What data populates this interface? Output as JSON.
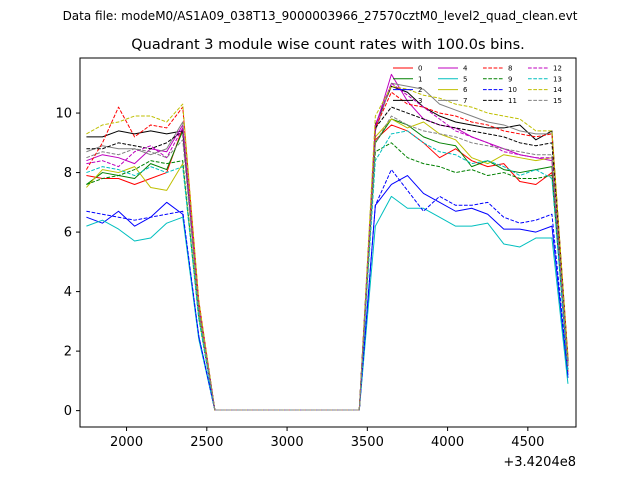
{
  "chart_data": {
    "type": "line",
    "suptitle": "Data file: modeM0/AS1A09_038T13_9000003966_27570cztM0_level2_quad_clean.evt",
    "title": "Quadrant 3 module wise count rates with 100.0s bins.",
    "xlabel": "",
    "ylabel": "",
    "offset_text": "+3.4204e8",
    "xlim": [
      1710,
      4800
    ],
    "ylim": [
      -0.55,
      11.85
    ],
    "xticks": [
      2000,
      2500,
      3000,
      3500,
      4000,
      4500
    ],
    "yticks": [
      0,
      2,
      4,
      6,
      8,
      10
    ],
    "grid": false,
    "legend_position": "top-right",
    "legend_columns": 4,
    "x": [
      1750,
      1850,
      1950,
      2050,
      2150,
      2250,
      2350,
      2450,
      2550,
      2650,
      2750,
      2850,
      2950,
      3050,
      3150,
      3250,
      3350,
      3450,
      3550,
      3650,
      3750,
      3850,
      3950,
      4050,
      4150,
      4250,
      4350,
      4450,
      4550,
      4650,
      4750
    ],
    "series": [
      {
        "name": "0",
        "color": "#ff0000",
        "dash": "solid",
        "values": [
          7.9,
          7.8,
          7.8,
          7.6,
          7.8,
          8.0,
          9.5,
          3.5,
          0.02,
          0.02,
          0.02,
          0.02,
          0.02,
          0.02,
          0.02,
          0.02,
          0.02,
          0.02,
          9.1,
          9.6,
          9.4,
          9.0,
          8.5,
          8.8,
          8.4,
          8.2,
          8.3,
          7.7,
          7.6,
          8.0,
          1.3
        ]
      },
      {
        "name": "1",
        "color": "#008000",
        "dash": "solid",
        "values": [
          7.6,
          8.0,
          7.9,
          7.8,
          8.3,
          8.1,
          9.4,
          3.4,
          0.02,
          0.02,
          0.02,
          0.02,
          0.02,
          0.02,
          0.02,
          0.02,
          0.02,
          0.02,
          9.0,
          9.8,
          9.6,
          9.2,
          9.0,
          8.9,
          8.2,
          8.4,
          8.1,
          8.0,
          8.1,
          8.2,
          1.6
        ]
      },
      {
        "name": "2",
        "color": "#0000ff",
        "dash": "solid",
        "values": [
          6.5,
          6.3,
          6.7,
          6.2,
          6.5,
          7.0,
          6.6,
          2.5,
          0.02,
          0.02,
          0.02,
          0.02,
          0.02,
          0.02,
          0.02,
          0.02,
          0.02,
          0.02,
          6.9,
          7.6,
          7.9,
          7.3,
          7.0,
          6.7,
          6.8,
          6.6,
          6.1,
          6.1,
          6.0,
          6.2,
          1.1
        ]
      },
      {
        "name": "3",
        "color": "#000000",
        "dash": "solid",
        "values": [
          9.2,
          9.2,
          9.4,
          9.3,
          9.4,
          9.3,
          9.4,
          3.6,
          0.02,
          0.02,
          0.02,
          0.02,
          0.02,
          0.02,
          0.02,
          0.02,
          0.02,
          0.02,
          9.6,
          10.9,
          10.7,
          10.2,
          9.9,
          9.7,
          9.6,
          9.5,
          9.5,
          9.6,
          9.1,
          9.4,
          1.7
        ]
      },
      {
        "name": "4",
        "color": "#bf00bf",
        "dash": "solid",
        "values": [
          8.4,
          8.6,
          8.5,
          8.3,
          8.8,
          8.7,
          9.6,
          3.5,
          0.02,
          0.02,
          0.02,
          0.02,
          0.02,
          0.02,
          0.02,
          0.02,
          0.02,
          0.02,
          9.5,
          11.3,
          10.4,
          9.8,
          9.6,
          9.5,
          9.2,
          9.0,
          8.8,
          8.6,
          8.5,
          8.4,
          1.5
        ]
      },
      {
        "name": "5",
        "color": "#00bfbf",
        "dash": "solid",
        "values": [
          6.2,
          6.4,
          6.1,
          5.7,
          5.8,
          6.3,
          6.5,
          2.4,
          0.02,
          0.02,
          0.02,
          0.02,
          0.02,
          0.02,
          0.02,
          0.02,
          0.02,
          0.02,
          6.2,
          7.2,
          6.8,
          6.8,
          6.5,
          6.2,
          6.2,
          6.3,
          5.6,
          5.5,
          5.8,
          5.8,
          0.9
        ]
      },
      {
        "name": "6",
        "color": "#bfbf00",
        "dash": "solid",
        "values": [
          7.5,
          8.1,
          8.0,
          8.2,
          7.5,
          7.4,
          8.3,
          3.2,
          0.02,
          0.02,
          0.02,
          0.02,
          0.02,
          0.02,
          0.02,
          0.02,
          0.02,
          0.02,
          9.2,
          9.8,
          9.5,
          9.7,
          9.3,
          9.1,
          8.5,
          8.3,
          8.6,
          8.5,
          8.4,
          8.5,
          1.6
        ]
      },
      {
        "name": "7",
        "color": "#808080",
        "dash": "solid",
        "values": [
          8.7,
          8.9,
          8.8,
          8.8,
          8.6,
          8.8,
          9.7,
          3.6,
          0.02,
          0.02,
          0.02,
          0.02,
          0.02,
          0.02,
          0.02,
          0.02,
          0.02,
          0.02,
          9.4,
          11.0,
          10.9,
          10.8,
          10.3,
          10.1,
          9.9,
          9.7,
          9.6,
          9.4,
          9.3,
          9.3,
          1.7
        ]
      },
      {
        "name": "8",
        "color": "#ff0000",
        "dash": "dashed",
        "values": [
          8.1,
          9.0,
          10.2,
          9.2,
          9.6,
          9.5,
          10.2,
          3.7,
          0.02,
          0.02,
          0.02,
          0.02,
          0.02,
          0.02,
          0.02,
          0.02,
          0.02,
          0.02,
          9.5,
          10.7,
          10.3,
          10.2,
          10.0,
          9.9,
          9.7,
          9.6,
          9.4,
          9.3,
          9.2,
          9.3,
          1.8
        ]
      },
      {
        "name": "9",
        "color": "#008000",
        "dash": "dashed",
        "values": [
          7.6,
          7.8,
          7.9,
          8.1,
          8.4,
          8.3,
          8.4,
          3.1,
          0.02,
          0.02,
          0.02,
          0.02,
          0.02,
          0.02,
          0.02,
          0.02,
          0.02,
          0.02,
          8.7,
          9.0,
          8.5,
          8.3,
          8.2,
          8.0,
          8.1,
          7.9,
          8.0,
          7.8,
          7.8,
          7.9,
          1.4
        ]
      },
      {
        "name": "10",
        "color": "#0000ff",
        "dash": "dashed",
        "values": [
          6.7,
          6.6,
          6.5,
          6.4,
          6.5,
          6.6,
          6.7,
          2.5,
          0.02,
          0.02,
          0.02,
          0.02,
          0.02,
          0.02,
          0.02,
          0.02,
          0.02,
          0.02,
          6.9,
          8.1,
          7.4,
          6.7,
          7.2,
          6.9,
          6.9,
          7.0,
          6.5,
          6.3,
          6.4,
          6.6,
          1.2
        ]
      },
      {
        "name": "11",
        "color": "#000000",
        "dash": "dashed",
        "values": [
          8.8,
          8.8,
          9.0,
          8.9,
          8.8,
          9.0,
          9.4,
          3.5,
          0.02,
          0.02,
          0.02,
          0.02,
          0.02,
          0.02,
          0.02,
          0.02,
          0.02,
          0.02,
          9.5,
          10.2,
          10.0,
          9.8,
          9.6,
          9.5,
          9.4,
          9.3,
          9.2,
          9.0,
          8.9,
          9.0,
          1.6
        ]
      },
      {
        "name": "12",
        "color": "#bf00bf",
        "dash": "dashed",
        "values": [
          8.3,
          8.4,
          8.2,
          8.7,
          8.9,
          8.5,
          9.5,
          3.5,
          0.02,
          0.02,
          0.02,
          0.02,
          0.02,
          0.02,
          0.02,
          0.02,
          0.02,
          0.02,
          9.6,
          11.0,
          10.6,
          10.2,
          9.8,
          9.4,
          9.2,
          9.0,
          8.7,
          8.6,
          8.5,
          8.5,
          1.5
        ]
      },
      {
        "name": "13",
        "color": "#00bfbf",
        "dash": "dashed",
        "values": [
          8.0,
          8.2,
          8.1,
          7.9,
          8.2,
          8.0,
          8.2,
          3.1,
          0.02,
          0.02,
          0.02,
          0.02,
          0.02,
          0.02,
          0.02,
          0.02,
          0.02,
          0.02,
          8.4,
          9.3,
          9.4,
          9.0,
          8.7,
          8.6,
          8.3,
          8.4,
          8.2,
          7.9,
          8.1,
          7.8,
          1.3
        ]
      },
      {
        "name": "14",
        "color": "#bfbf00",
        "dash": "dashed",
        "values": [
          9.3,
          9.6,
          9.7,
          9.9,
          9.9,
          9.7,
          10.3,
          3.7,
          0.02,
          0.02,
          0.02,
          0.02,
          0.02,
          0.02,
          0.02,
          0.02,
          0.02,
          0.02,
          9.9,
          10.9,
          10.8,
          10.6,
          10.5,
          10.3,
          10.2,
          10.0,
          9.9,
          9.8,
          9.4,
          9.4,
          1.8
        ]
      },
      {
        "name": "15",
        "color": "#808080",
        "dash": "dashed",
        "values": [
          8.5,
          8.7,
          8.6,
          8.8,
          8.7,
          8.5,
          9.1,
          3.4,
          0.02,
          0.02,
          0.02,
          0.02,
          0.02,
          0.02,
          0.02,
          0.02,
          0.02,
          0.02,
          9.0,
          9.9,
          9.6,
          9.4,
          9.3,
          9.2,
          9.0,
          8.9,
          8.8,
          8.7,
          8.6,
          8.6,
          1.5
        ]
      }
    ]
  }
}
